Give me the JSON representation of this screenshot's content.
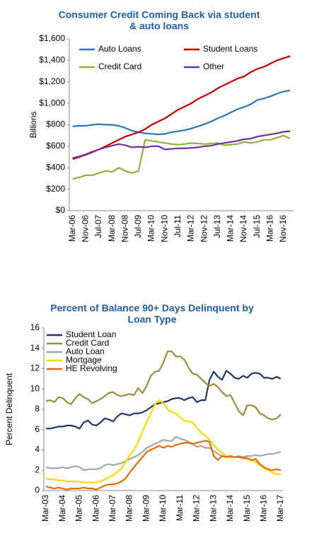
{
  "chart_data": [
    {
      "type": "line",
      "title": [
        "Consumer Credit Coming Back via student",
        "& auto loans"
      ],
      "ylabel": "Billions",
      "categories": [
        "Mar-06",
        null,
        "Nov-06",
        null,
        "Jul-07",
        null,
        "Mar-08",
        null,
        "Nov-08",
        null,
        "Jul-09",
        null,
        "Mar-10",
        null,
        "Nov-10",
        null,
        "Jul-11",
        null,
        "Mar-12",
        null,
        "Nov-12",
        null,
        "Jul-13",
        null,
        "Mar-14",
        null,
        "Nov-14",
        null,
        "Jul-15",
        null,
        "Mar-16",
        null,
        "Nov-16",
        null
      ],
      "ylim": [
        0,
        1600
      ],
      "yticks": [
        {
          "value": 0,
          "label": "$0"
        },
        {
          "value": 200,
          "label": "$200"
        },
        {
          "value": 400,
          "label": "$400"
        },
        {
          "value": 600,
          "label": "$600"
        },
        {
          "value": 800,
          "label": "$800"
        },
        {
          "value": 1000,
          "label": "$1,000"
        },
        {
          "value": 1200,
          "label": "$1,200"
        },
        {
          "value": 1400,
          "label": "$1,400"
        },
        {
          "value": 1600,
          "label": "$1,600"
        }
      ],
      "legend": "top-left",
      "series": [
        {
          "name": "Auto Loans",
          "color": "#2e75b6",
          "values": [
            785,
            790,
            790,
            800,
            805,
            800,
            800,
            790,
            770,
            745,
            730,
            720,
            715,
            710,
            715,
            730,
            740,
            750,
            765,
            785,
            805,
            830,
            860,
            885,
            915,
            945,
            965,
            990,
            1030,
            1045,
            1065,
            1090,
            1110,
            1120
          ]
        },
        {
          "name": "Student Loans",
          "color": "#c00000",
          "values": [
            480,
            500,
            520,
            545,
            570,
            600,
            630,
            660,
            690,
            710,
            730,
            760,
            800,
            830,
            860,
            900,
            940,
            970,
            1000,
            1040,
            1070,
            1100,
            1140,
            1170,
            1200,
            1230,
            1250,
            1290,
            1320,
            1340,
            1370,
            1400,
            1420,
            1440
          ]
        },
        {
          "name": "Credit Card",
          "color": "#8db33a",
          "values": [
            295,
            310,
            330,
            330,
            350,
            370,
            360,
            400,
            370,
            350,
            370,
            660,
            650,
            640,
            630,
            620,
            615,
            620,
            630,
            625,
            620,
            625,
            630,
            610,
            615,
            620,
            640,
            630,
            640,
            660,
            660,
            680,
            700,
            670
          ]
        },
        {
          "name": "Other",
          "color": "#7030a0",
          "values": [
            490,
            505,
            525,
            550,
            570,
            590,
            605,
            620,
            610,
            590,
            595,
            590,
            600,
            600,
            570,
            575,
            580,
            580,
            585,
            590,
            600,
            605,
            620,
            630,
            640,
            650,
            665,
            670,
            690,
            700,
            710,
            720,
            735,
            740
          ]
        }
      ]
    },
    {
      "type": "line",
      "title": [
        "Percent of Balance 90+ Days Delinquent by",
        "Loan Type"
      ],
      "ylabel": "Percent Delinquent",
      "categories": [
        "Mar-03",
        null,
        null,
        null,
        "Mar-04",
        null,
        null,
        null,
        "Mar-05",
        null,
        null,
        null,
        "Mar-06",
        null,
        null,
        null,
        "Mar-07",
        null,
        null,
        null,
        "Mar-08",
        null,
        null,
        null,
        "Mar-09",
        null,
        null,
        null,
        "Mar-10",
        null,
        null,
        null,
        "Mar-11",
        null,
        null,
        null,
        "Mar-12",
        null,
        null,
        null,
        "Mar-13",
        null,
        null,
        null,
        "Mar-14",
        null,
        null,
        null,
        "Mar-15",
        null,
        null,
        null,
        "Mar-16",
        null,
        null,
        null,
        "Mar-17"
      ],
      "ylim": [
        0,
        16
      ],
      "yticks": [
        0,
        2,
        4,
        6,
        8,
        10,
        12,
        14,
        16
      ],
      "legend": "top-left",
      "series": [
        {
          "name": "Student Loan",
          "color": "#1f3864",
          "values": [
            6.1,
            6.1,
            6.2,
            6.3,
            6.3,
            6.4,
            6.4,
            6.3,
            6.1,
            6.7,
            6.9,
            6.5,
            6.4,
            6.7,
            7.1,
            7.0,
            6.8,
            7.3,
            7.6,
            7.5,
            7.4,
            7.6,
            7.6,
            7.7,
            7.9,
            8.2,
            8.5,
            8.6,
            8.7,
            8.8,
            9.0,
            9.1,
            9.1,
            8.9,
            9.1,
            9.2,
            8.7,
            8.9,
            8.9,
            10.9,
            11.7,
            11.2,
            10.9,
            11.8,
            11.5,
            11.1,
            11.0,
            11.3,
            11.1,
            11.5,
            11.6,
            11.5,
            11.1,
            11.1,
            11.0,
            11.2,
            11.0
          ]
        },
        {
          "name": "Credit Card",
          "color": "#a08a3c",
          "values": [
            8.8,
            8.9,
            8.7,
            9.2,
            9.1,
            8.7,
            8.5,
            9.1,
            9.5,
            9.2,
            9.0,
            8.6,
            8.8,
            9.0,
            9.3,
            9.6,
            9.7,
            9.4,
            9.3,
            9.4,
            9.5,
            9.4,
            10.1,
            9.6,
            10.3,
            11.3,
            11.7,
            11.8,
            12.6,
            13.7,
            13.7,
            13.2,
            13.2,
            12.9,
            12.1,
            11.5,
            11.4,
            11.0,
            10.6,
            10.3,
            10.5,
            10.2,
            9.7,
            9.3,
            9.4,
            8.6,
            7.8,
            7.4,
            8.4,
            8.4,
            8.2,
            7.6,
            7.4,
            7.1,
            7.0,
            7.1,
            7.5
          ]
        },
        {
          "name": "Auto Loan",
          "color": "#a6a6a6",
          "values": [
            2.3,
            2.2,
            2.2,
            2.2,
            2.3,
            2.2,
            2.3,
            2.4,
            2.3,
            2.0,
            2.1,
            2.1,
            2.1,
            2.2,
            2.5,
            2.6,
            2.5,
            2.6,
            2.7,
            2.9,
            3.1,
            3.3,
            3.5,
            3.8,
            4.2,
            4.4,
            4.6,
            4.8,
            5.0,
            4.9,
            4.9,
            5.3,
            5.1,
            5.0,
            4.8,
            4.6,
            4.3,
            4.4,
            4.2,
            4.2,
            3.9,
            3.6,
            3.4,
            3.3,
            3.3,
            3.3,
            3.4,
            3.3,
            3.4,
            3.4,
            3.5,
            3.4,
            3.5,
            3.6,
            3.6,
            3.7,
            3.8
          ]
        },
        {
          "name": "Mortgage",
          "color": "#ffd700",
          "values": [
            1.2,
            1.1,
            1.1,
            1.0,
            1.0,
            0.9,
            0.9,
            0.9,
            0.9,
            0.8,
            0.8,
            0.8,
            0.8,
            0.9,
            1.1,
            1.3,
            1.5,
            1.8,
            2.2,
            2.8,
            3.5,
            4.0,
            4.8,
            5.8,
            6.7,
            7.6,
            8.5,
            8.9,
            8.6,
            8.0,
            7.7,
            7.6,
            7.2,
            6.9,
            6.8,
            6.7,
            6.2,
            5.7,
            5.4,
            5.0,
            4.5,
            4.0,
            3.7,
            3.4,
            3.2,
            3.3,
            3.3,
            3.2,
            3.1,
            3.0,
            2.8,
            2.5,
            2.2,
            2.0,
            1.8,
            1.6,
            1.6
          ]
        },
        {
          "name": "HE Revolving",
          "color": "#e36c09",
          "values": [
            0.4,
            0.3,
            0.2,
            0.3,
            0.2,
            0.1,
            0.2,
            0.2,
            0.2,
            0.3,
            0.2,
            0.2,
            0.1,
            0.3,
            0.5,
            0.6,
            0.6,
            0.7,
            0.9,
            1.2,
            1.8,
            2.3,
            2.8,
            3.3,
            3.8,
            4.0,
            4.2,
            4.4,
            4.2,
            4.4,
            4.3,
            4.5,
            4.6,
            4.7,
            4.7,
            4.6,
            4.7,
            4.8,
            4.9,
            4.8,
            3.4,
            3.0,
            3.4,
            3.3,
            3.4,
            3.3,
            3.3,
            3.2,
            3.2,
            3.0,
            3.1,
            2.6,
            2.3,
            2.1,
            2.0,
            2.1,
            2.0
          ]
        }
      ]
    }
  ]
}
